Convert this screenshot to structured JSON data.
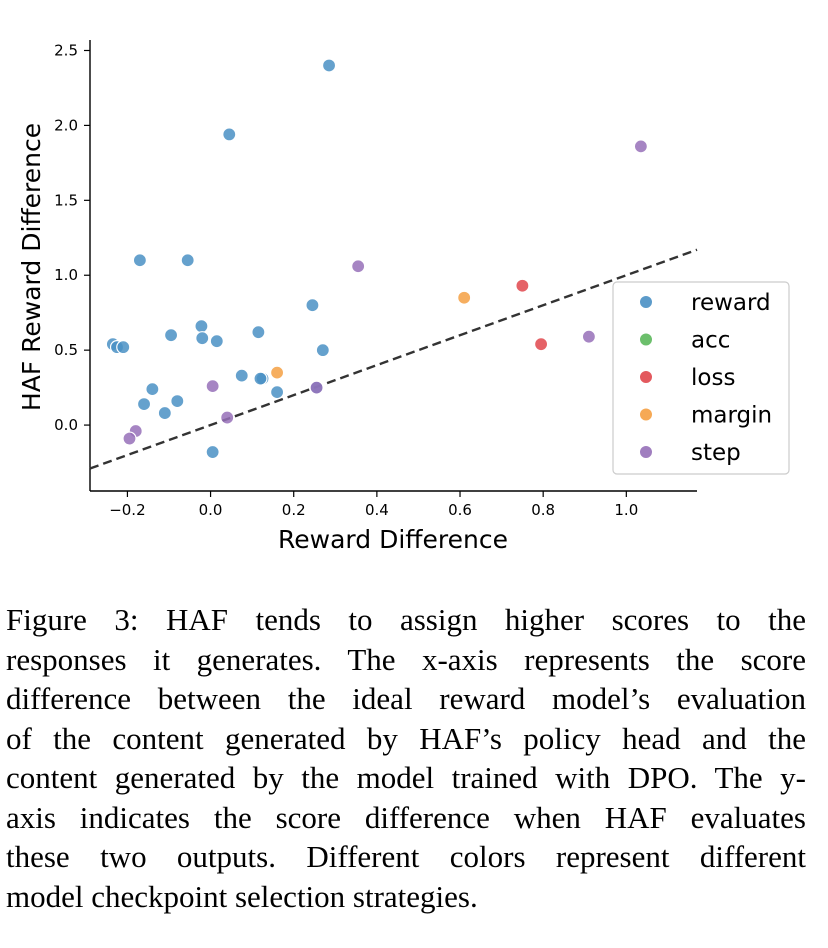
{
  "chart_data": {
    "type": "scatter",
    "xlabel": "Reward Difference",
    "ylabel": "HAF Reward Difference",
    "xlim": [
      -0.29,
      1.17
    ],
    "ylim": [
      -0.44,
      2.57
    ],
    "xticks": [
      -0.2,
      0.0,
      0.2,
      0.4,
      0.6,
      0.8,
      1.0
    ],
    "xtick_labels": [
      "−0.2",
      "0.0",
      "0.2",
      "0.4",
      "0.6",
      "0.8",
      "1.0"
    ],
    "yticks": [
      0.0,
      0.5,
      1.0,
      1.5,
      2.0,
      2.5
    ],
    "ytick_labels": [
      "0.0",
      "0.5",
      "1.0",
      "1.5",
      "2.0",
      "2.5"
    ],
    "grid": false,
    "legend_position": "right",
    "reference_line": {
      "style": "dashed",
      "slope": 1,
      "intercept": 0,
      "color": "#333333"
    },
    "series": [
      {
        "name": "reward",
        "color": "#4a90c4",
        "points": [
          [
            0.285,
            2.4
          ],
          [
            0.045,
            1.94
          ],
          [
            -0.17,
            1.1
          ],
          [
            -0.055,
            1.1
          ],
          [
            0.245,
            0.8
          ],
          [
            -0.022,
            0.66
          ],
          [
            0.115,
            0.62
          ],
          [
            -0.095,
            0.6
          ],
          [
            -0.02,
            0.58
          ],
          [
            0.015,
            0.56
          ],
          [
            -0.235,
            0.54
          ],
          [
            -0.225,
            0.52
          ],
          [
            -0.21,
            0.52
          ],
          [
            0.27,
            0.5
          ],
          [
            0.075,
            0.33
          ],
          [
            0.125,
            0.31
          ],
          [
            0.12,
            0.31
          ],
          [
            -0.14,
            0.24
          ],
          [
            0.16,
            0.22
          ],
          [
            -0.08,
            0.16
          ],
          [
            -0.16,
            0.14
          ],
          [
            -0.11,
            0.08
          ],
          [
            0.005,
            -0.18
          ],
          [
            0.255,
            0.25
          ]
        ]
      },
      {
        "name": "acc",
        "color": "#5cb85c",
        "points": []
      },
      {
        "name": "loss",
        "color": "#e0474c",
        "points": [
          [
            0.75,
            0.93
          ],
          [
            0.795,
            0.54
          ]
        ]
      },
      {
        "name": "margin",
        "color": "#f5a043",
        "points": [
          [
            0.61,
            0.85
          ],
          [
            0.16,
            0.35
          ]
        ]
      },
      {
        "name": "step",
        "color": "#9670b8",
        "points": [
          [
            1.035,
            1.86
          ],
          [
            0.355,
            1.06
          ],
          [
            0.91,
            0.59
          ],
          [
            0.005,
            0.26
          ],
          [
            0.255,
            0.25
          ],
          [
            0.04,
            0.05
          ],
          [
            -0.18,
            -0.04
          ],
          [
            -0.195,
            -0.09
          ]
        ]
      }
    ]
  },
  "caption": {
    "lines": [
      "Figure 3:  HAF tends to assign higher scores to the",
      "responses it generates. The x-axis represents the score",
      "difference between the ideal reward model’s evaluation",
      "of the content generated by HAF’s policy head and the",
      "content generated by the model trained with DPO. The y-",
      "axis indicates the score difference when HAF evaluates",
      "these two outputs.  Different colors represent different",
      "model checkpoint selection strategies."
    ]
  }
}
